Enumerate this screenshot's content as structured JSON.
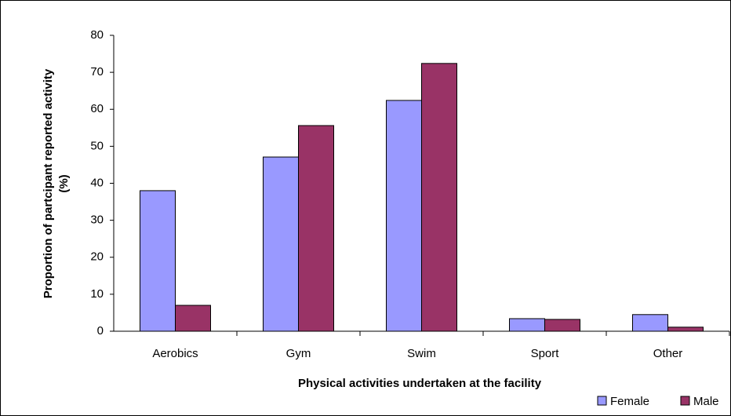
{
  "chart_data": {
    "type": "bar",
    "x_label": "Physical activities undertaken at the facility",
    "y_label": [
      "Proportion of partcipant reported activity",
      "(%)"
    ],
    "categories": [
      "Aerobics",
      "Gym",
      "Swim",
      "Sport",
      "Other"
    ],
    "series": [
      {
        "name": "Female",
        "color": "#9999ff",
        "values": [
          38,
          47.1,
          62.4,
          3.4,
          4.5
        ]
      },
      {
        "name": "Male",
        "color": "#993366",
        "values": [
          7,
          55.6,
          72.4,
          3.2,
          1.1
        ]
      }
    ],
    "ylim": [
      0,
      80
    ],
    "yticks": [
      0,
      10,
      20,
      30,
      40,
      50,
      60,
      70,
      80
    ],
    "grid": false,
    "legend": "bottom-right"
  }
}
